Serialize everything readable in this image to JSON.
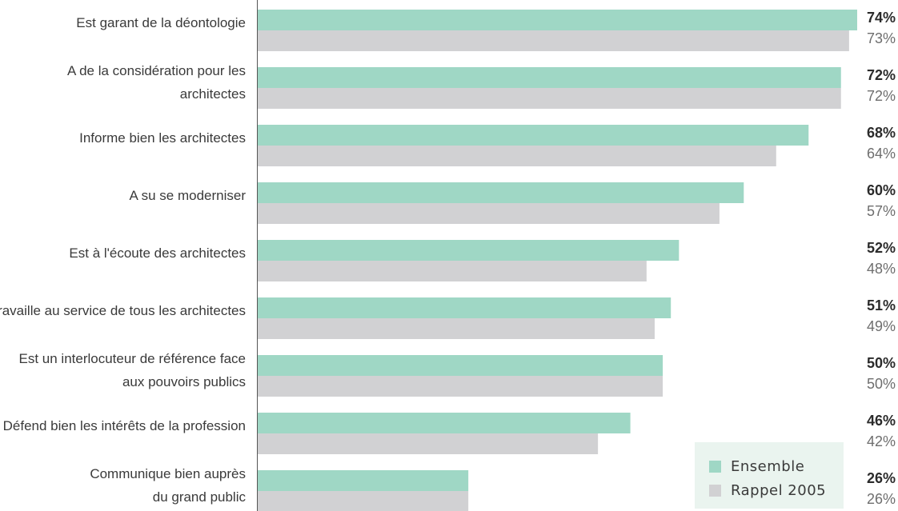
{
  "colors": {
    "series1": "#9fd7c5",
    "series2": "#d1d1d3",
    "axis": "#555555"
  },
  "chart_data": {
    "type": "bar",
    "orientation": "horizontal",
    "categories": [
      [
        "Est garant de la déontologie"
      ],
      [
        "A de la considération pour les",
        "architectes"
      ],
      [
        "Informe bien les architectes"
      ],
      [
        "A su se moderniser"
      ],
      [
        "Est à l'écoute des architectes"
      ],
      [
        "Travaille au service de tous les architectes"
      ],
      [
        "Est un interlocuteur de référence face",
        "aux pouvoirs publics"
      ],
      [
        "Défend bien les intérêts de la profession"
      ],
      [
        "Communique bien auprès",
        "du grand public"
      ]
    ],
    "series": [
      {
        "name": "Ensemble",
        "values": [
          74,
          72,
          68,
          60,
          52,
          51,
          50,
          46,
          26
        ]
      },
      {
        "name": "Rappel 2005",
        "values": [
          73,
          72,
          64,
          57,
          48,
          49,
          50,
          42,
          26
        ]
      }
    ],
    "value_suffix": "%",
    "xlim": [
      0,
      74
    ],
    "grid": false,
    "legend_position": "bottom-right"
  }
}
